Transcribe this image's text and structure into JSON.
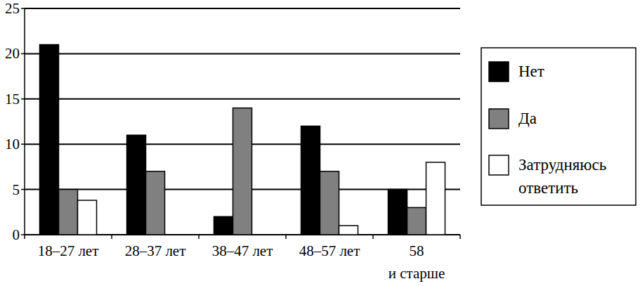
{
  "chart_data": {
    "type": "bar",
    "categories": [
      "18–27 лет",
      "28–37 лет",
      "38–47 лет",
      "48–57 лет",
      "58\nи старше"
    ],
    "series": [
      {
        "name": "Нет",
        "color": "#000000",
        "values": [
          21,
          11,
          2,
          12,
          5
        ]
      },
      {
        "name": "Да",
        "color": "#808080",
        "values": [
          5,
          7,
          14,
          7,
          3
        ]
      },
      {
        "name": "Затрудняюсь\nответить",
        "color": "#ffffff",
        "values": [
          3.8,
          0,
          0,
          1,
          8
        ]
      }
    ],
    "ylim": [
      0,
      25
    ],
    "yticks": [
      0,
      5,
      10,
      15,
      20,
      25
    ],
    "grid": true,
    "legend": "right"
  }
}
